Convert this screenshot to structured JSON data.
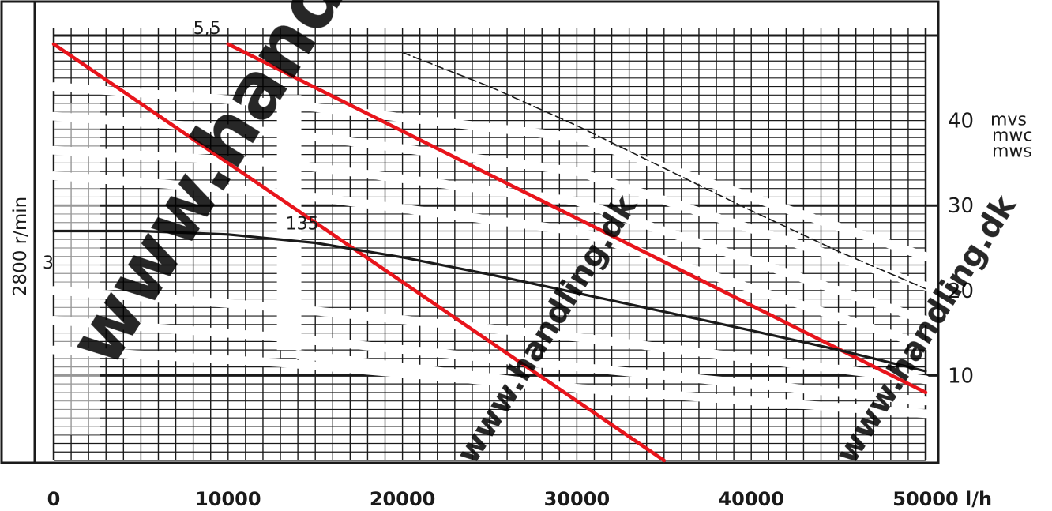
{
  "chart_data": {
    "type": "line",
    "side_label": "2800 r/min",
    "x": {
      "ticks": [
        0,
        10000,
        20000,
        30000,
        40000,
        50000
      ],
      "tick_labels": [
        "0",
        "10000",
        "20000",
        "30000",
        "40000",
        "50000"
      ],
      "unit_label": "l/h",
      "lim": [
        0,
        50000
      ]
    },
    "y": {
      "ticks": [
        10,
        20,
        30,
        40
      ],
      "tick_labels": [
        "10",
        "20",
        "30",
        "40"
      ],
      "unit_labels": [
        "mvs",
        "mwc",
        "mws"
      ],
      "lim": [
        0,
        50
      ]
    },
    "grid": true,
    "series": [
      {
        "role": "marked-line-1",
        "color": "#e8141b",
        "points": [
          [
            0,
            49
          ],
          [
            35000,
            0
          ]
        ]
      },
      {
        "role": "marked-line-2",
        "color": "#e8141b",
        "points": [
          [
            10000,
            49
          ],
          [
            50000,
            8
          ]
        ]
      },
      {
        "role": "curve-135",
        "color": "#1a1a1a",
        "points": [
          [
            0,
            27
          ],
          [
            5000,
            27
          ],
          [
            10000,
            26.6
          ],
          [
            15000,
            25.6
          ],
          [
            20000,
            23.9
          ],
          [
            25000,
            21.9
          ],
          [
            30000,
            19.7
          ],
          [
            35000,
            17.5
          ],
          [
            40000,
            15.3
          ],
          [
            45000,
            13
          ],
          [
            50000,
            10.5
          ]
        ]
      },
      {
        "role": "curve-5.5",
        "color": "#1a1a1a",
        "points": [
          [
            20000,
            48
          ],
          [
            25000,
            44
          ],
          [
            30000,
            39.4
          ],
          [
            35000,
            34.4
          ],
          [
            40000,
            29.4
          ],
          [
            45000,
            24.6
          ],
          [
            50000,
            20.2
          ]
        ]
      }
    ],
    "annotations": [
      {
        "text": "5,5",
        "x": 8000,
        "y": 50
      },
      {
        "text": "135",
        "x": 13300,
        "y": 27
      },
      {
        "text": "3",
        "x": 0,
        "y": 23.5
      }
    ]
  },
  "watermark": {
    "text": "www.handling.dk",
    "color": "#2457e6"
  }
}
